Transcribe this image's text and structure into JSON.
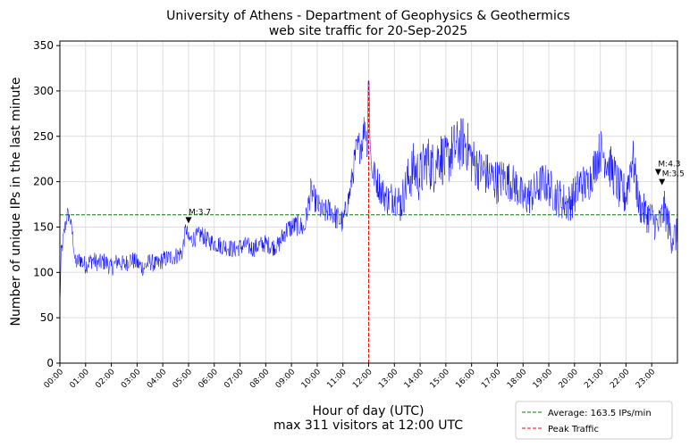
{
  "chart_data": {
    "type": "line",
    "title": "University of Athens - Department of Geophysics & Geothermics",
    "subtitle": "web site traffic for 20-Sep-2025",
    "xlabel": "Hour of day (UTC)",
    "xlabel_sub": "max 311 visitors at 12:00 UTC",
    "ylabel": "Number of unique IPs in the last minute",
    "xlim": [
      0,
      24
    ],
    "ylim": [
      0,
      355
    ],
    "yticks": [
      0,
      50,
      100,
      150,
      200,
      250,
      300,
      350
    ],
    "xticks": [
      "00:00",
      "01:00",
      "02:00",
      "03:00",
      "04:00",
      "05:00",
      "06:00",
      "07:00",
      "08:00",
      "09:00",
      "10:00",
      "11:00",
      "12:00",
      "13:00",
      "14:00",
      "15:00",
      "16:00",
      "17:00",
      "18:00",
      "19:00",
      "20:00",
      "21:00",
      "22:00",
      "23:00"
    ],
    "grid": true,
    "series_color": "#0000ff",
    "series": [
      {
        "x": [
          0,
          0.05,
          0.1,
          0.2,
          0.3,
          0.4,
          0.5,
          0.6,
          0.7,
          0.8,
          0.9,
          1.0,
          1.25,
          1.5,
          1.75,
          2.0,
          2.25,
          2.5,
          2.75,
          3.0,
          3.25,
          3.5,
          3.75,
          4.0,
          4.25,
          4.5,
          4.75,
          4.9,
          5.0,
          5.25,
          5.5,
          5.75,
          6.0,
          6.25,
          6.5,
          6.75,
          7.0,
          7.25,
          7.5,
          7.75,
          8.0,
          8.25,
          8.5,
          8.75,
          9.0,
          9.25,
          9.5,
          9.75,
          10.0,
          10.25,
          10.5,
          10.75,
          11.0,
          11.25,
          11.5,
          11.75,
          11.85,
          11.95,
          12.0,
          12.1,
          12.25,
          12.5,
          12.75,
          13.0,
          13.25,
          13.5,
          13.75,
          14.0,
          14.25,
          14.5,
          14.75,
          15.0,
          15.25,
          15.5,
          15.75,
          16.0,
          16.25,
          16.5,
          16.75,
          17.0,
          17.25,
          17.5,
          17.75,
          18.0,
          18.25,
          18.5,
          18.75,
          19.0,
          19.25,
          19.5,
          19.75,
          20.0,
          20.25,
          20.5,
          20.75,
          21.0,
          21.25,
          21.5,
          21.75,
          22.0,
          22.25,
          22.5,
          22.75,
          23.0,
          23.25,
          23.5,
          23.75,
          24.0
        ],
        "y": [
          62,
          120,
          130,
          150,
          165,
          158,
          140,
          110,
          112,
          115,
          110,
          108,
          114,
          110,
          112,
          105,
          113,
          108,
          115,
          110,
          105,
          112,
          108,
          114,
          116,
          118,
          122,
          150,
          135,
          138,
          142,
          135,
          132,
          130,
          128,
          125,
          128,
          130,
          126,
          130,
          132,
          128,
          130,
          145,
          150,
          152,
          148,
          190,
          175,
          165,
          170,
          160,
          155,
          185,
          230,
          245,
          265,
          240,
          300,
          215,
          205,
          190,
          180,
          185,
          175,
          200,
          215,
          205,
          225,
          215,
          230,
          220,
          235,
          240,
          245,
          225,
          215,
          210,
          205,
          200,
          205,
          200,
          195,
          180,
          185,
          190,
          200,
          195,
          185,
          180,
          175,
          185,
          200,
          195,
          215,
          235,
          225,
          210,
          190,
          185,
          230,
          175,
          165,
          160,
          150,
          170,
          140,
          140
        ],
        "amp": [
          4,
          10,
          10,
          10,
          8,
          8,
          8,
          10,
          10,
          10,
          10,
          10,
          10,
          10,
          10,
          10,
          10,
          10,
          10,
          10,
          10,
          10,
          10,
          10,
          10,
          10,
          10,
          10,
          10,
          10,
          10,
          10,
          10,
          10,
          10,
          10,
          10,
          10,
          10,
          10,
          10,
          10,
          10,
          12,
          12,
          12,
          14,
          14,
          14,
          14,
          14,
          14,
          14,
          14,
          20,
          20,
          18,
          18,
          10,
          18,
          18,
          18,
          18,
          20,
          22,
          25,
          30,
          30,
          30,
          30,
          30,
          30,
          30,
          30,
          30,
          28,
          25,
          25,
          25,
          25,
          22,
          22,
          22,
          22,
          22,
          22,
          22,
          22,
          22,
          22,
          22,
          22,
          22,
          22,
          22,
          25,
          25,
          25,
          25,
          25,
          25,
          20,
          20,
          20,
          20,
          20,
          20,
          20
        ]
      }
    ],
    "average": {
      "value": 163.5,
      "color": "#008000",
      "label": "Average: 163.5 IPs/min"
    },
    "peak": {
      "x": 12.0,
      "value": 311,
      "color": "#ff0000",
      "label": "Peak Traffic"
    },
    "annotations": [
      {
        "x": 5.0,
        "y": 157,
        "text": "M:3.7"
      },
      {
        "x": 23.25,
        "y": 210,
        "text": "M:4.3"
      },
      {
        "x": 23.4,
        "y": 199,
        "text": "M:3.5"
      }
    ],
    "legend_position": "lower-right"
  }
}
